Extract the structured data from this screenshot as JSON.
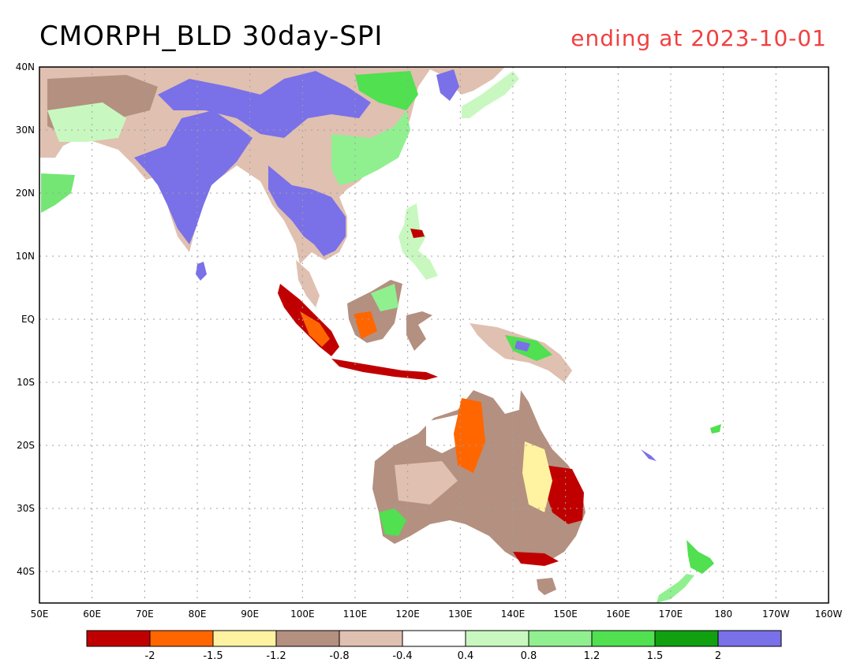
{
  "header": {
    "title": "CMORPH_BLD 30day-SPI",
    "date_label": "ending at 2023-10-01"
  },
  "map": {
    "lon_labels": [
      "50E",
      "60E",
      "70E",
      "80E",
      "90E",
      "100E",
      "110E",
      "120E",
      "130E",
      "140E",
      "150E",
      "160E",
      "170E",
      "180",
      "170W",
      "160W"
    ],
    "lat_labels": [
      "40N",
      "30N",
      "20N",
      "10N",
      "EQ",
      "10S",
      "20S",
      "30S",
      "40S"
    ],
    "grid": true,
    "land_outline_color": "#000000",
    "ocean_color": "#ffffff"
  },
  "legend": {
    "colors": [
      "#c00000",
      "#ff6600",
      "#fff2a0",
      "#b49080",
      "#e0c0b0",
      "#ffffff",
      "#c8f8c0",
      "#90f090",
      "#50e050",
      "#10a010",
      "#7a70e8"
    ],
    "ticks": [
      "-2",
      "-1.5",
      "-1.2",
      "-0.8",
      "-0.4",
      "0.4",
      "0.8",
      "1.2",
      "1.5",
      "2"
    ]
  }
}
